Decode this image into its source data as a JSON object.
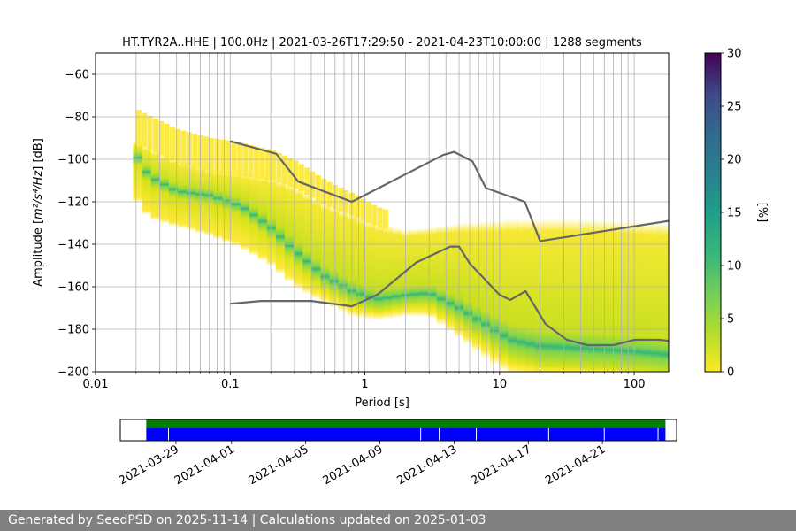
{
  "chart_data": {
    "type": "heatmap",
    "title": "HT.TYR2A..HHE | 100.0Hz | 2021-03-26T17:29:50 - 2021-04-23T10:00:00 | 1288 segments",
    "xlabel": "Period [s]",
    "ylabel_prefix": "Amplitude [",
    "ylabel_math": "m²/s⁴/Hz",
    "ylabel_suffix": "] [dB]",
    "xscale": "log",
    "xlim": [
      0.01,
      180
    ],
    "ylim": [
      -200,
      -50
    ],
    "xticks": [
      0.01,
      0.1,
      1,
      10,
      100
    ],
    "xtick_labels": [
      "0.01",
      "0.1",
      "1",
      "10",
      "100"
    ],
    "yticks": [
      -60,
      -80,
      -100,
      -120,
      -140,
      -160,
      -180,
      -200
    ],
    "ytick_labels": [
      "−60",
      "−80",
      "−100",
      "−120",
      "−140",
      "−160",
      "−180",
      "−200"
    ],
    "grid": true,
    "colorbar": {
      "label": "[%]",
      "min": 0,
      "max": 30,
      "ticks": [
        0,
        5,
        10,
        15,
        20,
        25,
        30
      ],
      "tick_labels": [
        "0",
        "5",
        "10",
        "15",
        "20",
        "25",
        "30"
      ],
      "colormap": "viridis"
    },
    "density_bands": [
      {
        "name": "upper",
        "x": [
          0.019,
          0.025,
          0.04,
          0.07,
          0.12,
          0.2,
          0.3,
          0.5,
          0.8,
          1.2,
          2,
          3,
          5,
          8,
          12,
          20,
          40,
          80,
          180
        ],
        "y": [
          -100,
          -104,
          -110,
          -114,
          -116,
          -118,
          -122,
          -130,
          -135,
          -140,
          -143,
          -142,
          -140,
          -139,
          -138,
          -138,
          -138,
          -139,
          -140
        ]
      },
      {
        "name": "median",
        "x": [
          0.019,
          0.025,
          0.04,
          0.07,
          0.12,
          0.2,
          0.3,
          0.5,
          0.8,
          1.2,
          2,
          3,
          5,
          8,
          12,
          20,
          40,
          80,
          180
        ],
        "y": [
          -96,
          -108,
          -115,
          -117,
          -122,
          -132,
          -143,
          -155,
          -162,
          -166,
          -164,
          -163,
          -170,
          -178,
          -185,
          -188,
          -189,
          -190,
          -192
        ]
      },
      {
        "name": "lower",
        "x": [
          0.019,
          0.025,
          0.04,
          0.07,
          0.12,
          0.2,
          0.3,
          0.5,
          0.8,
          1.2,
          2,
          3,
          5,
          8,
          12,
          20,
          40,
          80,
          180
        ],
        "y": [
          -113,
          -124,
          -128,
          -132,
          -138,
          -146,
          -156,
          -164,
          -170,
          -172,
          -170,
          -170,
          -180,
          -190,
          -198,
          -200,
          -200,
          -200,
          -200
        ]
      }
    ],
    "series": [
      {
        "name": "NHNM",
        "color": "#666666",
        "x": [
          0.1,
          0.22,
          0.32,
          0.8,
          3.8,
          4.6,
          6.3,
          7.9,
          15.4,
          20,
          180
        ],
        "y": [
          -91.5,
          -97.4,
          -110.5,
          -120,
          -98,
          -96.5,
          -101,
          -113.5,
          -120,
          -138.5,
          -129
        ]
      },
      {
        "name": "NLNM",
        "color": "#666666",
        "x": [
          0.1,
          0.17,
          0.4,
          0.8,
          1.24,
          2.4,
          4.3,
          5,
          6,
          10,
          12,
          15.6,
          21.9,
          31.6,
          45,
          70,
          101,
          154,
          180
        ],
        "y": [
          -168,
          -166.7,
          -166.7,
          -169.2,
          -163.7,
          -148.6,
          -141.1,
          -141.1,
          -149,
          -163.8,
          -166.2,
          -162.1,
          -177.5,
          -185,
          -187.5,
          -187.5,
          -185,
          -185,
          -185.5
        ]
      }
    ]
  },
  "timeline": {
    "tick_labels": [
      "2021-03-29",
      "2021-04-01",
      "2021-04-05",
      "2021-04-09",
      "2021-04-13",
      "2021-04-17",
      "2021-04-21"
    ],
    "tick_days": [
      3,
      6,
      10,
      14,
      18,
      22,
      26
    ],
    "range_days": [
      0,
      30
    ],
    "data_range_days": [
      1.4,
      29.4
    ],
    "gap_days": [
      2.6,
      16.2,
      17.2,
      19.2,
      23.1,
      26.1,
      29.0
    ],
    "coverage_color": "#008000",
    "data_color": "#0000ff"
  },
  "footer": {
    "text": "Generated by SeedPSD on 2025-11-14 | Calculations updated on 2025-01-03"
  },
  "colors": {
    "grid": "#b0b0b0",
    "model_lines": "#666666"
  }
}
